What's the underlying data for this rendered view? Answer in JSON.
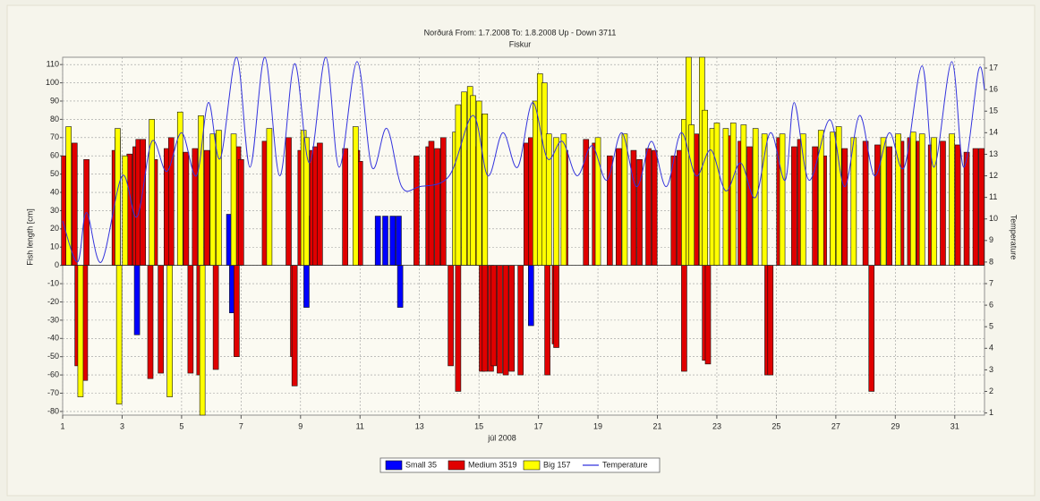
{
  "chart_data": {
    "type": "bar",
    "title": "Norðurá     From: 1.7.2008     To: 1.8.2008     Up - Down     3711",
    "subtitle": "Fiskur",
    "xlabel": "júl 2008",
    "ylabel": "Fish length [cm]",
    "y2label": "Temperature",
    "xlim": [
      1,
      32
    ],
    "xticks": [
      1,
      3,
      5,
      7,
      9,
      11,
      13,
      15,
      17,
      19,
      21,
      23,
      25,
      27,
      29,
      31
    ],
    "ylim": [
      -82,
      114
    ],
    "yticks": [
      -80,
      -70,
      -60,
      -50,
      -40,
      -30,
      -20,
      -10,
      0,
      10,
      20,
      30,
      40,
      50,
      60,
      70,
      80,
      90,
      100,
      110
    ],
    "y2lim": [
      0.9,
      17.5
    ],
    "y2ticks": [
      1,
      2,
      3,
      4,
      5,
      6,
      7,
      8,
      9,
      10,
      11,
      12,
      13,
      14,
      15,
      16,
      17
    ],
    "grid": true,
    "legend": "bottom",
    "series": [
      {
        "name": "Small  35",
        "color": "#0000ff",
        "x": [
          3.5,
          6.6,
          6.7,
          9.25,
          9.2,
          10.9,
          11.6,
          11.85,
          12.1,
          12.3,
          12.35,
          16.75
        ],
        "values": [
          -38,
          28,
          -26,
          27,
          -23,
          25,
          27,
          27,
          27,
          27,
          -23,
          -33
        ]
      },
      {
        "name": "Medium  3519",
        "color": "#e00000",
        "x": [
          1.05,
          1.4,
          1.5,
          1.8,
          1.75,
          2.75,
          2.85,
          3.25,
          3.45,
          3.55,
          3.7,
          3.95,
          4.1,
          4.3,
          4.5,
          4.65,
          5.15,
          5.3,
          5.45,
          5.6,
          5.85,
          6.1,
          6.15,
          6.9,
          6.85,
          7.0,
          7.8,
          8.6,
          8.75,
          8.8,
          9.0,
          9.4,
          9.5,
          9.65,
          10.5,
          10.9,
          11.0,
          12.9,
          13.3,
          13.4,
          13.6,
          13.8,
          14.05,
          14.3,
          14.6,
          14.9,
          15.1,
          15.2,
          15.4,
          15.5,
          15.7,
          15.9,
          16.1,
          16.4,
          16.6,
          16.75,
          17.1,
          17.3,
          17.55,
          17.6,
          17.9,
          18.6,
          18.9,
          19.4,
          19.7,
          20.2,
          20.4,
          20.7,
          20.9,
          21.55,
          21.75,
          21.9,
          22.0,
          22.3,
          22.6,
          22.7,
          23.4,
          23.8,
          24.1,
          24.3,
          24.7,
          24.8,
          25.1,
          25.6,
          25.8,
          26.3,
          26.6,
          26.9,
          27.3,
          27.6,
          28.0,
          28.2,
          28.4,
          28.8,
          29.2,
          29.5,
          29.8,
          30.2,
          30.6,
          31.1,
          31.4,
          31.7,
          31.9
        ],
        "values": [
          60,
          67,
          -55,
          58,
          -63,
          63,
          70,
          61,
          65,
          69,
          69,
          -62,
          58,
          -59,
          64,
          70,
          62,
          -59,
          64,
          -60,
          63,
          60,
          -57,
          65,
          -50,
          58,
          68,
          70,
          -50,
          -66,
          63,
          63,
          65,
          67,
          64,
          63,
          57,
          60,
          65,
          68,
          64,
          70,
          -55,
          -69,
          63,
          65,
          -58,
          -58,
          -58,
          -55,
          -59,
          -60,
          -58,
          -60,
          67,
          70,
          66,
          -60,
          -43,
          -45,
          63,
          69,
          67,
          60,
          64,
          63,
          58,
          64,
          63,
          60,
          63,
          -58,
          70,
          72,
          -52,
          -54,
          71,
          68,
          65,
          70,
          -60,
          -60,
          70,
          65,
          69,
          65,
          60,
          68,
          64,
          66,
          68,
          -69,
          66,
          65,
          68,
          70,
          68,
          66,
          68,
          66,
          62,
          64,
          64
        ]
      },
      {
        "name": "Big  157",
        "color": "#ffff00",
        "x": [
          1.2,
          1.6,
          2.85,
          2.9,
          3.1,
          4.0,
          4.6,
          4.95,
          5.65,
          5.7,
          6.05,
          6.25,
          6.75,
          7.95,
          9.1,
          9.2,
          10.85,
          14.2,
          14.3,
          14.5,
          14.7,
          14.8,
          15.0,
          15.2,
          16.9,
          17.05,
          17.2,
          17.35,
          17.6,
          17.85,
          19.0,
          19.9,
          21.9,
          22.05,
          22.15,
          22.5,
          22.6,
          22.85,
          23.0,
          23.3,
          23.55,
          23.9,
          24.3,
          24.6,
          25.2,
          25.9,
          26.5,
          26.9,
          27.1,
          27.6,
          28.6,
          29.1,
          29.6,
          29.9,
          30.3,
          30.9
        ],
        "values": [
          76,
          -72,
          75,
          -76,
          60,
          80,
          -72,
          84,
          82,
          -82,
          72,
          74,
          72,
          75,
          74,
          70,
          76,
          73,
          88,
          95,
          98,
          93,
          90,
          83,
          90,
          105,
          100,
          72,
          70,
          72,
          70,
          72,
          80,
          114,
          77,
          114,
          85,
          75,
          78,
          75,
          78,
          77,
          75,
          72,
          72,
          72,
          74,
          73,
          76,
          70,
          70,
          72,
          73,
          72,
          70,
          72
        ]
      },
      {
        "name": "Temperature",
        "color": "#3333dd",
        "type": "line",
        "axis": "y2",
        "x": [
          1.0,
          1.5,
          1.8,
          2.3,
          3.0,
          3.5,
          4.0,
          4.5,
          5.0,
          5.5,
          5.9,
          6.3,
          6.85,
          7.3,
          7.8,
          8.3,
          8.8,
          9.3,
          9.85,
          10.3,
          10.9,
          11.4,
          11.9,
          12.4,
          13.0,
          14.0,
          14.8,
          15.3,
          15.8,
          16.3,
          16.8,
          17.3,
          17.8,
          18.3,
          18.8,
          19.3,
          19.8,
          20.3,
          20.8,
          21.3,
          21.8,
          22.3,
          22.8,
          23.3,
          23.8,
          24.3,
          24.8,
          25.3,
          25.6,
          26.1,
          26.8,
          27.3,
          27.8,
          28.3,
          28.8,
          29.3,
          29.9,
          30.3,
          30.9,
          31.3,
          31.8,
          32.0
        ],
        "values": [
          9.9,
          8.0,
          10.3,
          8.0,
          12.0,
          10.1,
          13.6,
          12.2,
          14.0,
          12.0,
          15.4,
          12.8,
          17.5,
          12.4,
          17.5,
          12.0,
          17.2,
          12.6,
          17.5,
          12.4,
          17.3,
          12.4,
          14.2,
          11.5,
          11.5,
          12.0,
          14.8,
          12.0,
          14.0,
          12.4,
          15.4,
          12.8,
          13.6,
          12.0,
          13.4,
          11.8,
          14.0,
          11.5,
          13.6,
          11.5,
          14.0,
          12.0,
          13.2,
          11.3,
          12.6,
          11.0,
          14.0,
          11.8,
          15.4,
          11.8,
          14.6,
          11.5,
          14.8,
          12.0,
          14.0,
          12.4,
          17.1,
          12.4,
          17.3,
          12.4,
          16.9,
          16.0
        ]
      }
    ]
  }
}
